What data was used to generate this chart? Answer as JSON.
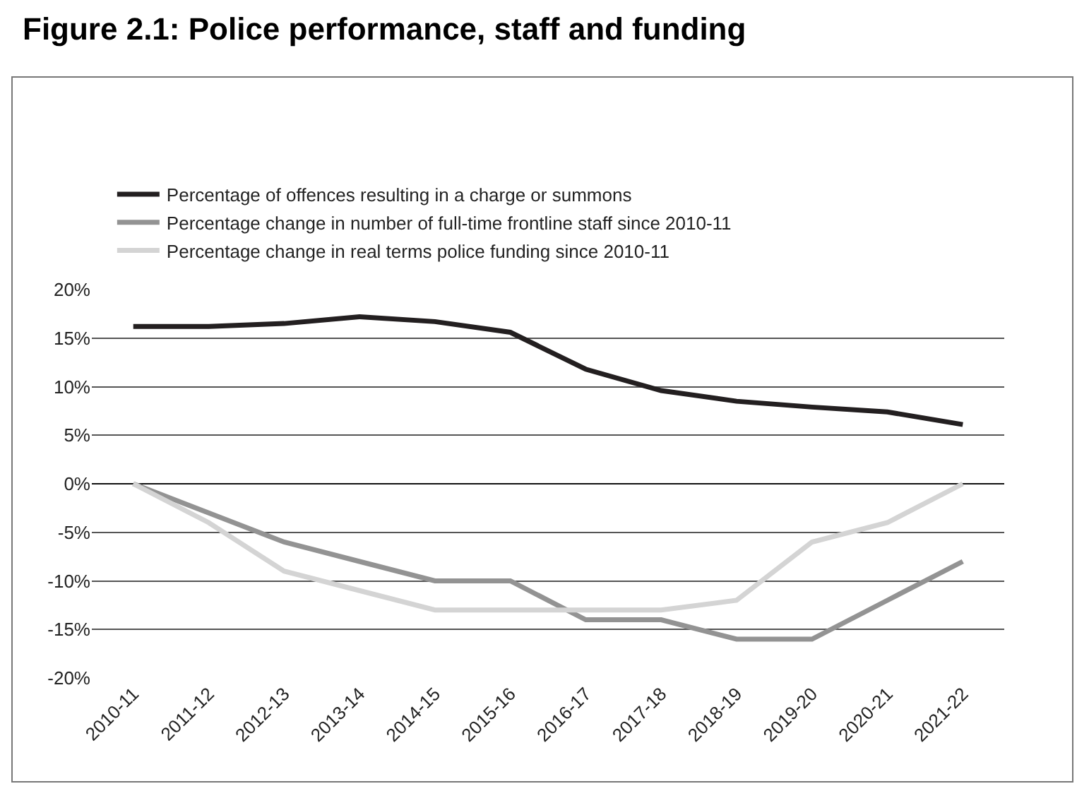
{
  "chart_data": {
    "type": "line",
    "title": "Figure 2.1: Police performance, staff and funding",
    "categories": [
      "2010-11",
      "2011-12",
      "2012-13",
      "2013-14",
      "2014-15",
      "2015-16",
      "2016-17",
      "2017-18",
      "2018-19",
      "2019-20",
      "2020-21",
      "2021-22"
    ],
    "series": [
      {
        "name": "Percentage of offences resulting in a charge or summons",
        "color": "#231f20",
        "values": [
          16.2,
          16.2,
          16.5,
          17.2,
          16.7,
          15.6,
          11.8,
          9.6,
          8.5,
          7.9,
          7.4,
          6.1
        ]
      },
      {
        "name": "Percentage change in number of full-time frontline staff since 2010-11",
        "color": "#939393",
        "values": [
          0,
          -3,
          -6,
          -8,
          -10,
          -10,
          -14,
          -14,
          -16,
          -16,
          -12,
          -8
        ]
      },
      {
        "name": "Percentage change in real terms police funding since 2010-11",
        "color": "#d4d4d4",
        "values": [
          0,
          -4,
          -9,
          -11,
          -13,
          -13,
          -13,
          -13,
          -12,
          -6,
          -4,
          0
        ]
      }
    ],
    "ylim": [
      -20,
      20
    ],
    "yticks": [
      {
        "value": -20,
        "label": "-20%"
      },
      {
        "value": -15,
        "label": "-15%"
      },
      {
        "value": -10,
        "label": "-10%"
      },
      {
        "value": -5,
        "label": "-5%"
      },
      {
        "value": 0,
        "label": "0%"
      },
      {
        "value": 5,
        "label": "5%"
      },
      {
        "value": 10,
        "label": "10%"
      },
      {
        "value": 15,
        "label": "15%"
      },
      {
        "value": 20,
        "label": "20%"
      }
    ],
    "grid": "y",
    "legend": "top",
    "marker": "none",
    "line_style": "solid"
  }
}
